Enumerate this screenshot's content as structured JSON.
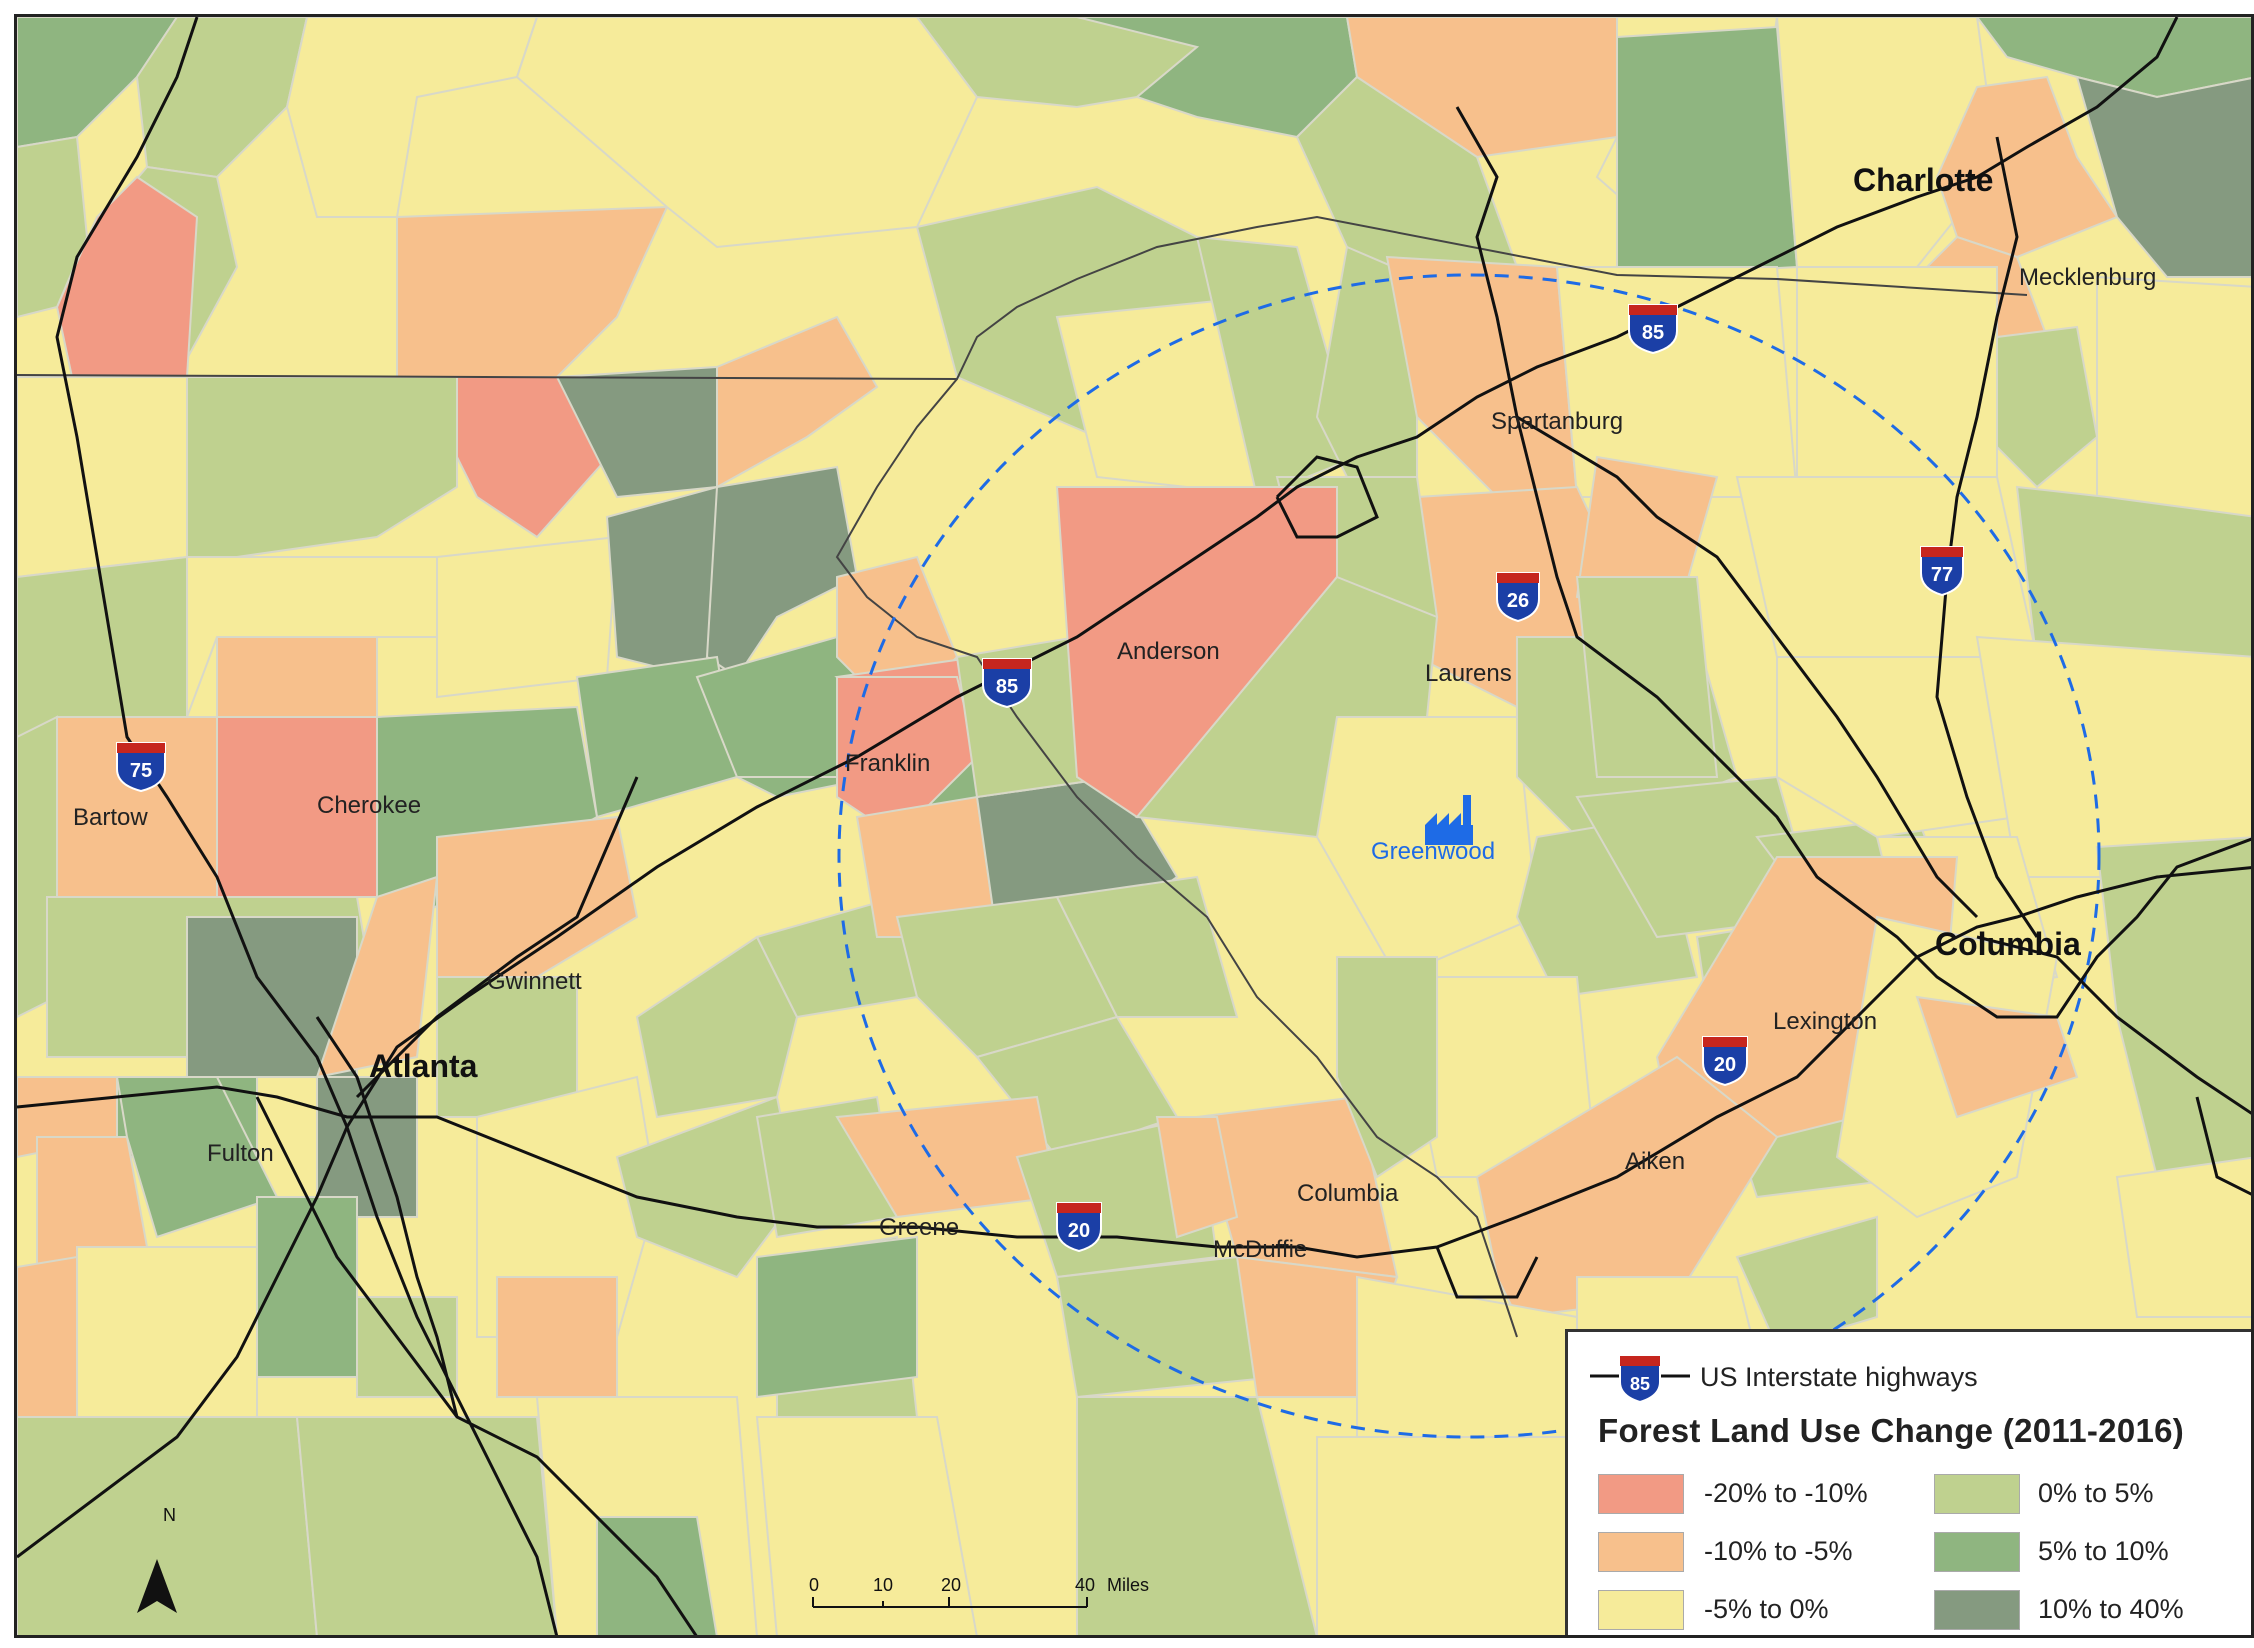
{
  "legend": {
    "highway_label": "US Interstate highways",
    "highway_shield_number": "85",
    "title": "Forest Land Use Change (2011-2016)",
    "classes": [
      {
        "label": "-20% to -10%",
        "color": "#f29a84"
      },
      {
        "label": "-10% to -5%",
        "color": "#f7c08c"
      },
      {
        "label": "-5% to 0%",
        "color": "#f6eb9a"
      },
      {
        "label": "0% to 5%",
        "color": "#bfd18f"
      },
      {
        "label": "5% to 10%",
        "color": "#8fb580"
      },
      {
        "label": "10% to 40%",
        "color": "#859a80"
      }
    ]
  },
  "cities": {
    "charlotte": "Charlotte",
    "columbia": "Columbia",
    "atlanta": "Atlanta",
    "greenwood": "Greenwood"
  },
  "counties": {
    "mecklenburg": "Mecklenburg",
    "spartanburg": "Spartanburg",
    "anderson": "Anderson",
    "laurens": "Laurens",
    "franklin": "Franklin",
    "bartow": "Bartow",
    "cherokee": "Cherokee",
    "gwinnett": "Gwinnett",
    "fulton": "Fulton",
    "lexington": "Lexington",
    "aiken": "Aiken",
    "columbia_county": "Columbia",
    "mcduffie": "McDuffie",
    "greene": "Greene"
  },
  "shields": {
    "i75": "75",
    "i85_west": "85",
    "i85_east": "85",
    "i26": "26",
    "i77": "77",
    "i20_east": "20",
    "i20_west": "20"
  },
  "scale_bar": {
    "ticks": [
      "0",
      "10",
      "20",
      "40"
    ],
    "unit": "Miles"
  },
  "north_arrow_label": "N"
}
